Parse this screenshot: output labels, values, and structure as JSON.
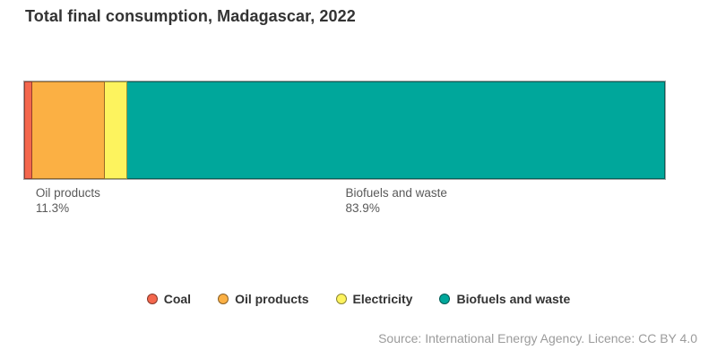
{
  "title": "Total final consumption, Madagascar, 2022",
  "source_note": "Source: International Energy Agency. Licence: CC BY 4.0",
  "chart_data": {
    "type": "bar",
    "subtype": "horizontal-stacked-percentage",
    "title": "Total final consumption, Madagascar, 2022",
    "unit": "%",
    "total": 100,
    "xlim": [
      0,
      100
    ],
    "grid": false,
    "legend_position": "bottom-center",
    "categories": [
      "Coal",
      "Oil products",
      "Electricity",
      "Biofuels and waste"
    ],
    "series": [
      {
        "name": "Coal",
        "value": 1.3,
        "color": "#f4674d",
        "label_shown": false,
        "label": ""
      },
      {
        "name": "Oil products",
        "value": 11.3,
        "color": "#fbb044",
        "label_shown": true,
        "label": "11.3%"
      },
      {
        "name": "Electricity",
        "value": 3.5,
        "color": "#fdf35e",
        "label_shown": false,
        "label": ""
      },
      {
        "name": "Biofuels and waste",
        "value": 83.9,
        "color": "#00a79b",
        "label_shown": true,
        "label": "83.9%"
      }
    ]
  }
}
